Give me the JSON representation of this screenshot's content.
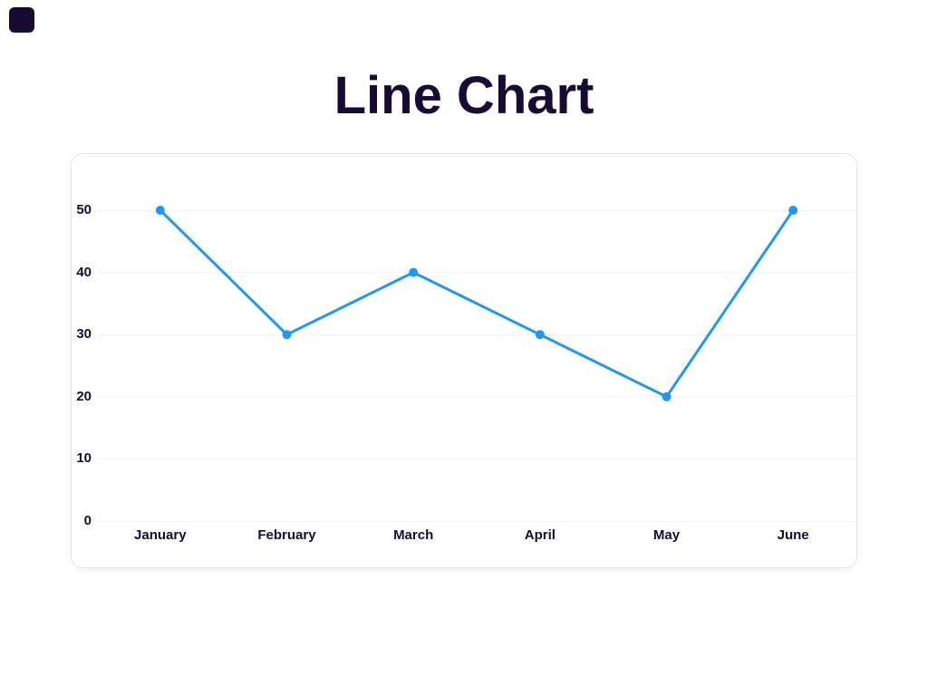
{
  "title": "Line Chart",
  "colors": {
    "accent": "#2196f3",
    "text": "#170a33",
    "gridline": "#f1f1f4",
    "card_border": "#e3e3e8",
    "background": "#ffffff"
  },
  "chart_data": {
    "type": "line",
    "title": "Line Chart",
    "categories": [
      "January",
      "February",
      "March",
      "April",
      "May",
      "June"
    ],
    "values": [
      50,
      30,
      40,
      30,
      20,
      50
    ],
    "yticks": [
      0,
      10,
      20,
      30,
      40,
      50
    ],
    "ylim": [
      0,
      59
    ],
    "xlabel": "",
    "ylabel": "",
    "grid": "horizontal-only",
    "legend": "none",
    "line_color": "#2196f3",
    "point_color": "#2196f3",
    "line_width": 3,
    "point_radius": 5
  }
}
